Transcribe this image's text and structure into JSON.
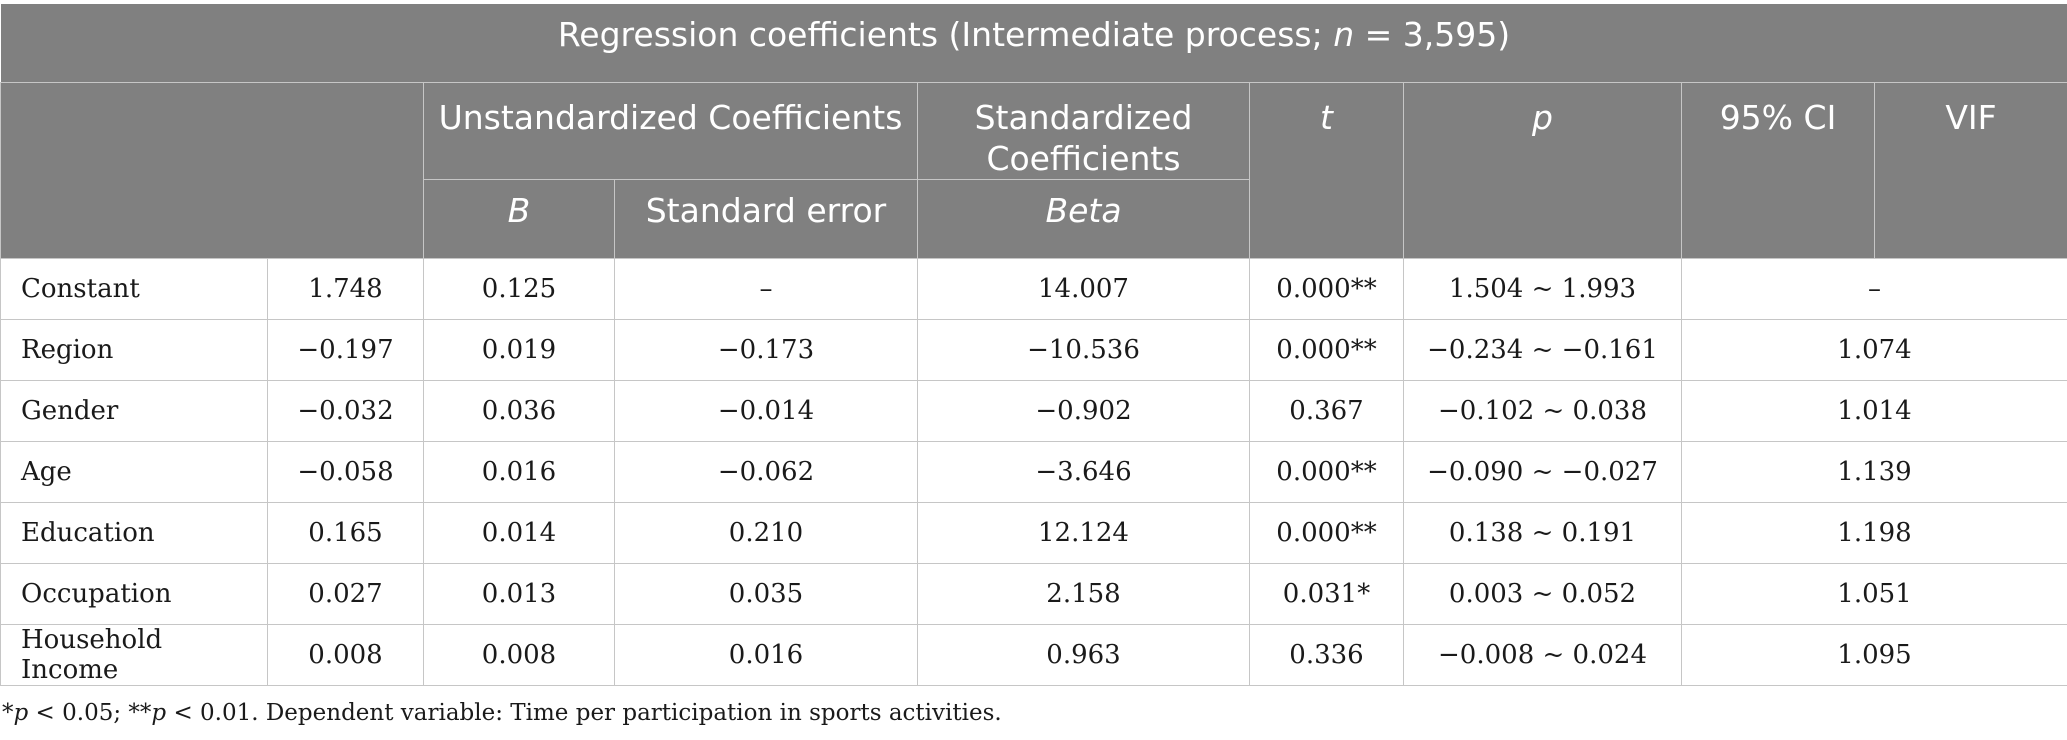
{
  "table": {
    "title_prefix": "Regression coefficients (Intermediate process; ",
    "title_n": "n",
    "title_suffix": " = 3,595)",
    "headers": {
      "unstandardized": "Unstandardized Coefficients",
      "standardized": "Standardized Coefficients",
      "t": "t",
      "p": "p",
      "ci": "95% CI",
      "vif": "VIF",
      "b": "B",
      "standard_error": "Standard error",
      "beta": "Beta"
    },
    "rows": [
      {
        "label": "Constant",
        "c1": "1.748",
        "c2": "0.125",
        "c3": "–",
        "c4": "14.007",
        "c5": "0.000**",
        "c6": "1.504 ~ 1.993",
        "c7": "–"
      },
      {
        "label": "Region",
        "c1": "−0.197",
        "c2": "0.019",
        "c3": "−0.173",
        "c4": "−10.536",
        "c5": "0.000**",
        "c6": "−0.234 ~ −0.161",
        "c7": "1.074"
      },
      {
        "label": "Gender",
        "c1": "−0.032",
        "c2": "0.036",
        "c3": "−0.014",
        "c4": "−0.902",
        "c5": "0.367",
        "c6": "−0.102 ~ 0.038",
        "c7": "1.014"
      },
      {
        "label": "Age",
        "c1": "−0.058",
        "c2": "0.016",
        "c3": "−0.062",
        "c4": "−3.646",
        "c5": "0.000**",
        "c6": "−0.090 ~ −0.027",
        "c7": "1.139"
      },
      {
        "label": "Education",
        "c1": "0.165",
        "c2": "0.014",
        "c3": "0.210",
        "c4": "12.124",
        "c5": "0.000**",
        "c6": "0.138 ~ 0.191",
        "c7": "1.198"
      },
      {
        "label": "Occupation",
        "c1": "0.027",
        "c2": "0.013",
        "c3": "0.035",
        "c4": "2.158",
        "c5": "0.031*",
        "c6": "0.003 ~ 0.052",
        "c7": "1.051"
      },
      {
        "label": "Household Income",
        "c1": "0.008",
        "c2": "0.008",
        "c3": "0.016",
        "c4": "0.963",
        "c5": "0.336",
        "c6": "−0.008 ~ 0.024",
        "c7": "1.095"
      }
    ]
  },
  "footnote": {
    "star1": "*",
    "p1": "p",
    "mid1": " < 0.05; **",
    "p2": "p",
    "rest": " < 0.01. Dependent variable: Time per participation in sports activities."
  }
}
